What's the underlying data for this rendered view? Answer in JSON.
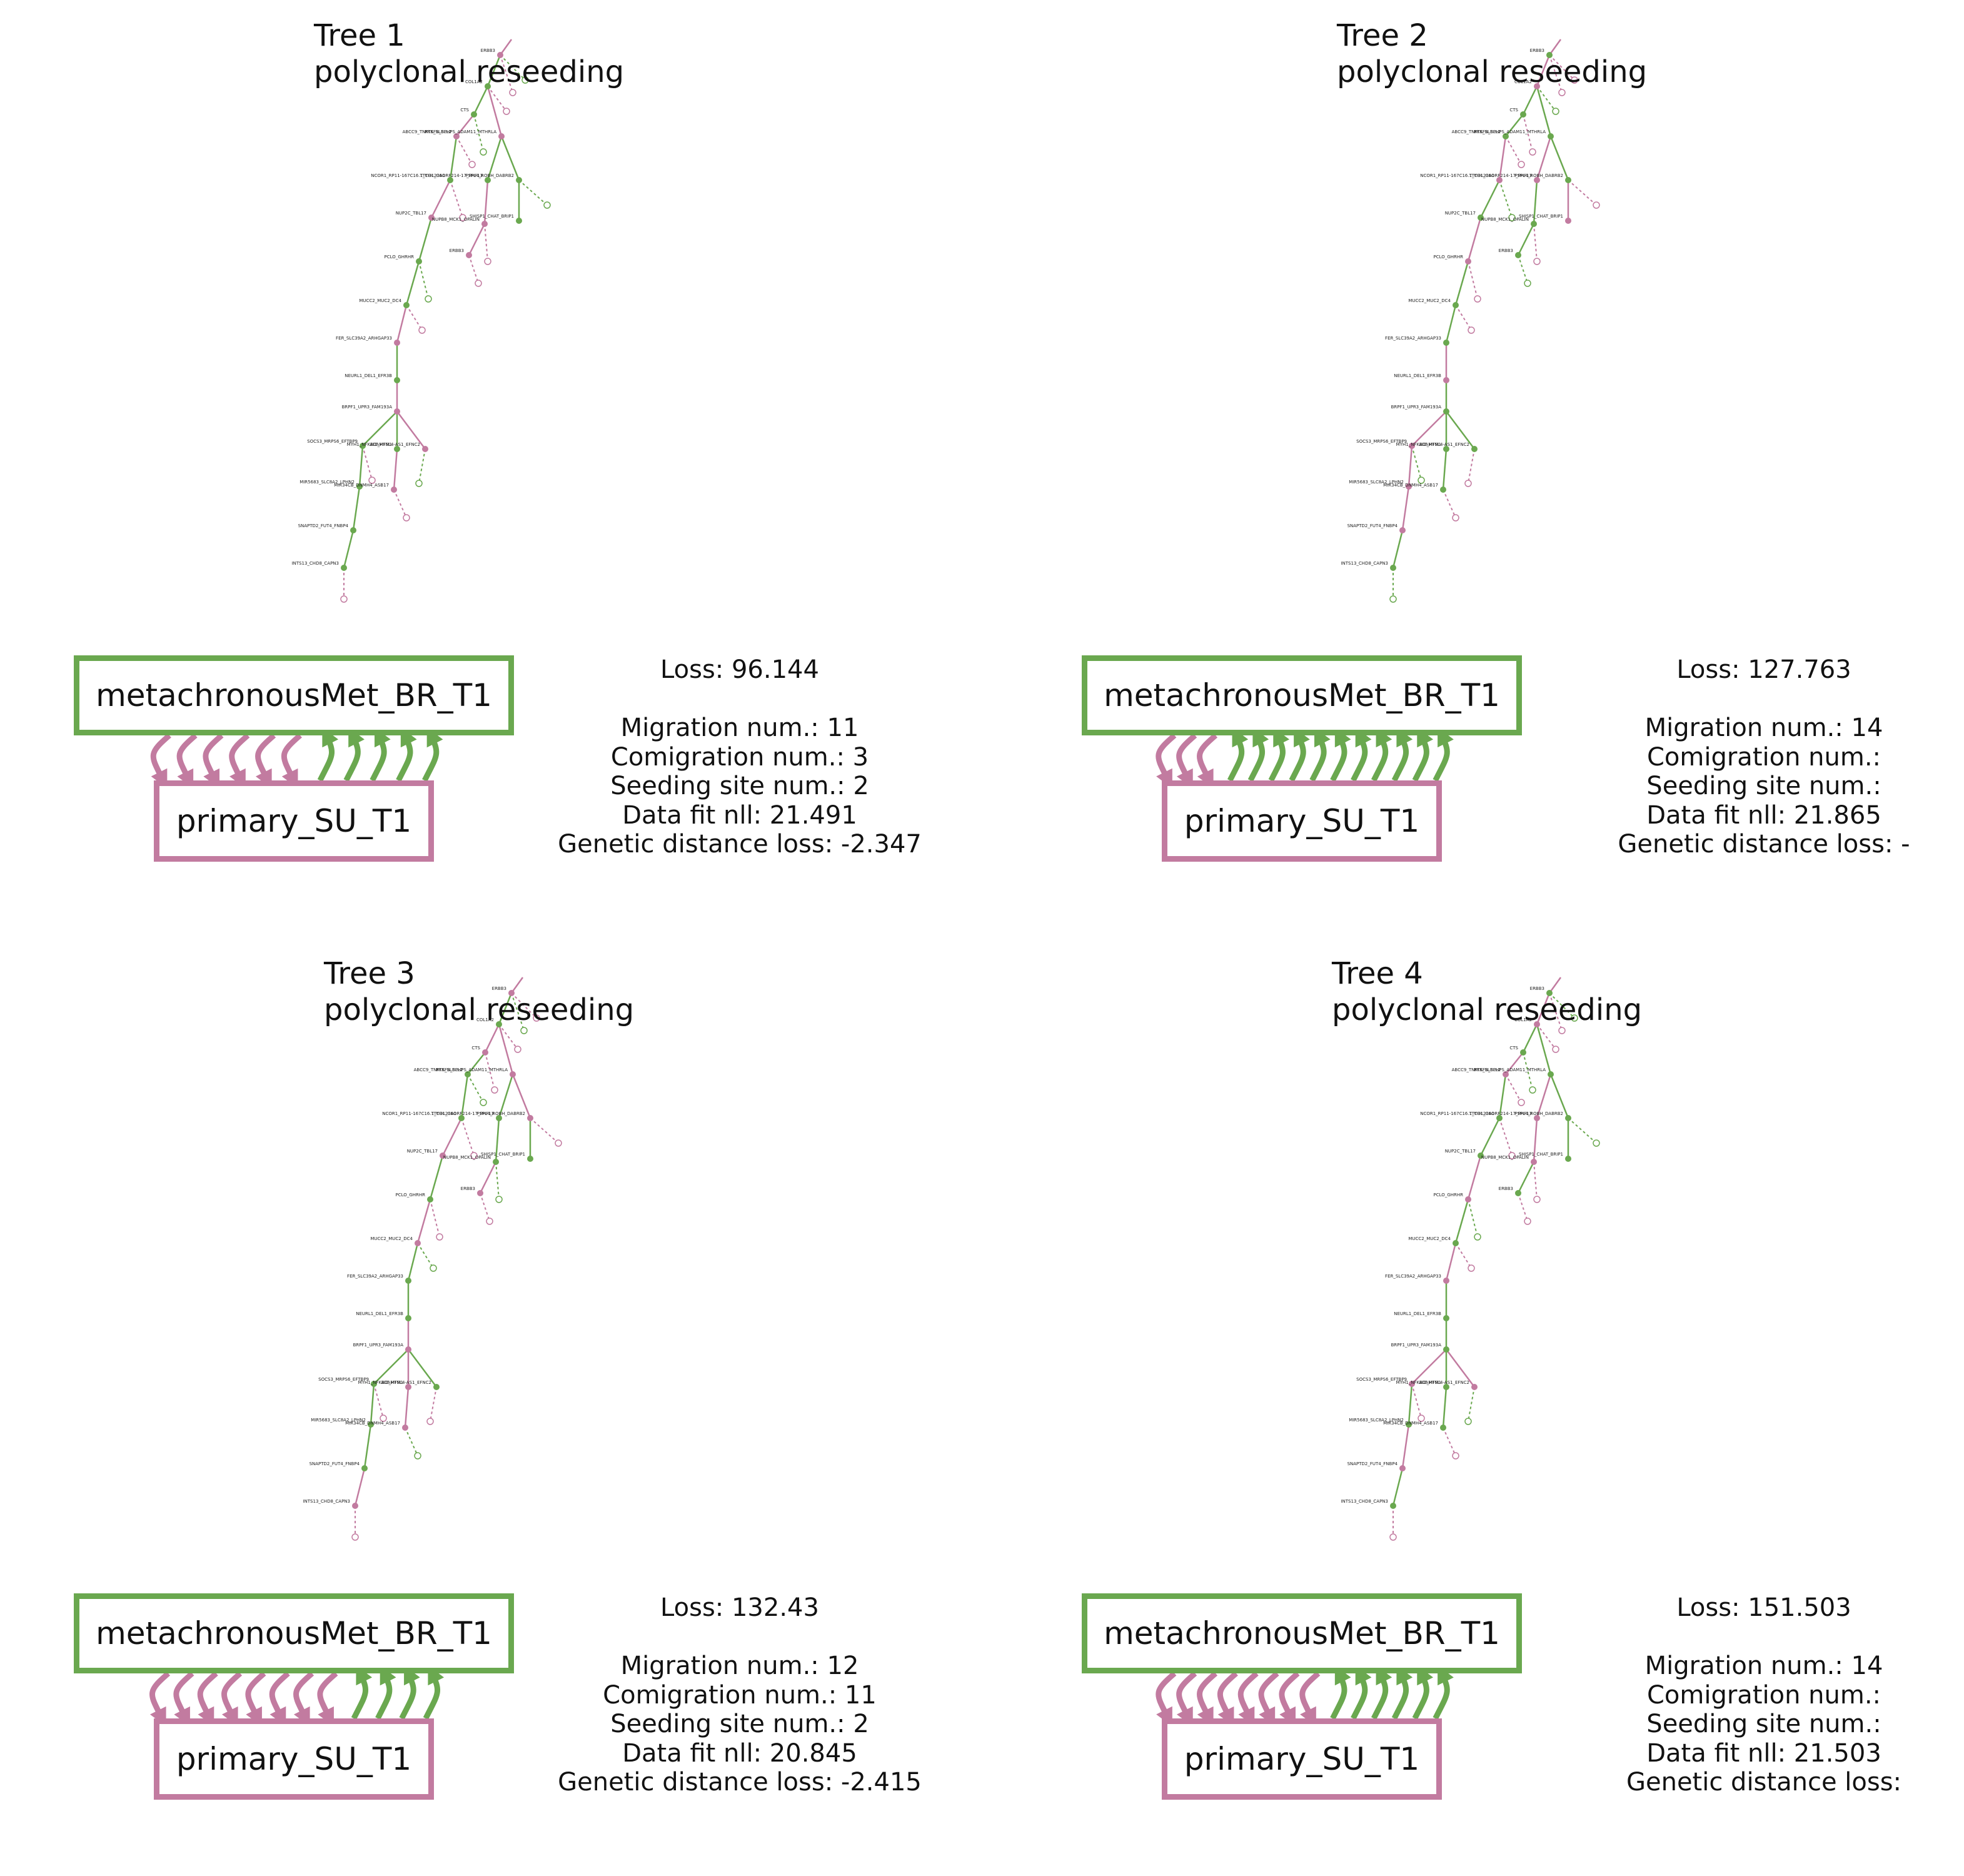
{
  "colors": {
    "met": "#6aa84f",
    "primary": "#c27ba0",
    "met_dark": "#4a8a2e",
    "primary_dark": "#a5577f"
  },
  "panels": [
    {
      "title_line1": "Tree 1",
      "title_line2": "polyclonal reseeding",
      "met_label": "metachronousMet_BR_T1",
      "primary_label": "primary_SU_T1",
      "stats": {
        "loss": "Loss: 96.144",
        "migration": "Migration num.: 11",
        "comigration": "Comigration num.: 3",
        "seeding": "Seeding site num.: 2",
        "datafit": "Data fit nll: 21.491",
        "genetic": "Genetic distance loss: -2.347"
      },
      "arrows_down": 6,
      "arrows_up": 5
    },
    {
      "title_line1": "Tree 2",
      "title_line2": "polyclonal reseeding",
      "met_label": "metachronousMet_BR_T1",
      "primary_label": "primary_SU_T1",
      "stats": {
        "loss": "Loss: 127.763",
        "migration": "Migration num.: 14",
        "comigration": "Comigration num.: ",
        "seeding": "Seeding site num.: ",
        "datafit": "Data fit nll: 21.865",
        "genetic": "Genetic distance loss: -"
      },
      "arrows_down": 3,
      "arrows_up": 11
    },
    {
      "title_line1": "Tree 3",
      "title_line2": "polyclonal reseeding",
      "met_label": "metachronousMet_BR_T1",
      "primary_label": "primary_SU_T1",
      "stats": {
        "loss": "Loss: 132.43",
        "migration": "Migration num.: 12",
        "comigration": "Comigration num.: 11",
        "seeding": "Seeding site num.: 2",
        "datafit": "Data fit nll: 20.845",
        "genetic": "Genetic distance loss: -2.415"
      },
      "arrows_down": 8,
      "arrows_up": 4
    },
    {
      "title_line1": "Tree 4",
      "title_line2": "polyclonal reseeding",
      "met_label": "metachronousMet_BR_T1",
      "primary_label": "primary_SU_T1",
      "stats": {
        "loss": "Loss: 151.503",
        "migration": "Migration num.: 14",
        "comigration": "Comigration num.: ",
        "seeding": "Seeding site num.: ",
        "datafit": "Data fit nll: 21.503",
        "genetic": "Genetic distance loss:"
      },
      "arrows_down": 8,
      "arrows_up": 6
    }
  ],
  "tree_node_labels": [
    "ERBB3",
    "COL1A2",
    "CTS",
    "ABCC9_TNKTS_SLBLL2",
    "NCOR1_RP11-167C16.1_COL23A1",
    "NUP2C_TBL17",
    "PCLO_GHRHR",
    "MUCC2_MUC2_DC4",
    "FER_SLC39A2_ARHGAP33",
    "NEURL1_DEL1_EFR3B",
    "BRPF1_UPR3_FAM193A",
    "SOCS3_MRPS6_EFTBP9",
    "MYH1_NFKBIZ_HFM1",
    "ADAMTSL4-AS1_EFNC2",
    "MIR5683_SLC8A2_LPHN2",
    "MIR34CB_DNMH4_ASB17",
    "SNAPTD2_FUT4_FNBP4",
    "INTS13_CHD8_CAPN3",
    "PRKFB_SPHPS_ADAM11_MTHRLA",
    "TTYH1_C6ORF214-17_PHF13",
    "PSPL4_ROBH_DABRB2",
    "NUPB8_MCK1_OPALIN",
    "SHISP1_CHAT_BRIP1"
  ]
}
